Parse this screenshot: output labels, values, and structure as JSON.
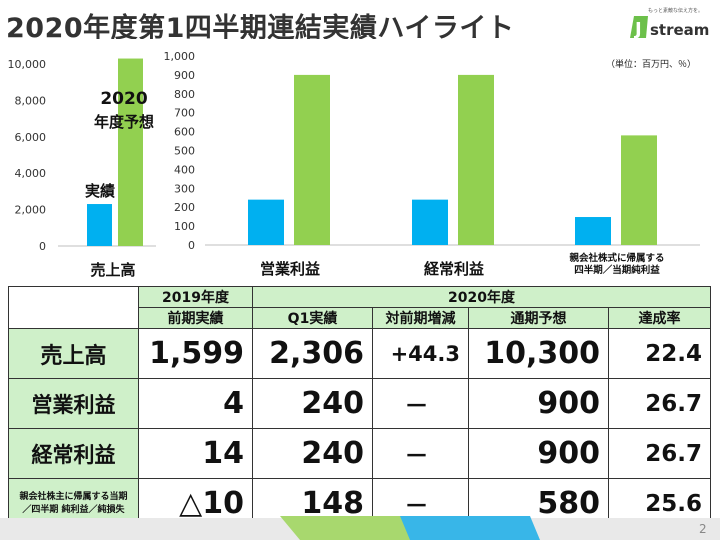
{
  "slide": {
    "title": "2020年度第1四半期連結実績ハイライト",
    "unit": "（単位：百万円、％）",
    "page_number": "2"
  },
  "logo": {
    "tagline": "もっと素敵な伝え方を。",
    "text": "stream",
    "mark": "J"
  },
  "colors": {
    "actual": "#00b0f0",
    "forecast": "#92d050",
    "header_bg": "#cff0c9"
  },
  "chart_data": [
    {
      "type": "bar",
      "categories": [
        "売上高"
      ],
      "series": [
        {
          "name": "実績",
          "values": [
            2306
          ]
        },
        {
          "name": "2020 年度予想",
          "values": [
            10300
          ]
        }
      ],
      "yticks": [
        "10,000",
        "8,000",
        "6,000",
        "4,000",
        "2,000",
        "0"
      ],
      "ylim": [
        0,
        10000
      ],
      "annotations": {
        "actual": "実績",
        "forecast_line1": "2020",
        "forecast_line2": "年度予想"
      }
    },
    {
      "type": "bar",
      "categories": [
        "営業利益",
        "経常利益",
        "親会社株式に帰属する 四半期／当期純利益"
      ],
      "category_lines": [
        [
          "営業利益"
        ],
        [
          "経常利益"
        ],
        [
          "親会社株式に帰属する",
          "四半期／当期純利益"
        ]
      ],
      "series": [
        {
          "name": "実績",
          "values": [
            240,
            240,
            148
          ]
        },
        {
          "name": "予想",
          "values": [
            900,
            900,
            580
          ]
        }
      ],
      "yticks": [
        "1,000",
        "900",
        "800",
        "700",
        "600",
        "500",
        "400",
        "300",
        "200",
        "100",
        "0"
      ],
      "ylim": [
        0,
        1000
      ]
    }
  ],
  "table": {
    "header_year_prev": "2019年度",
    "header_year_curr": "2020年度",
    "columns": [
      "前期実績",
      "Q1実績",
      "対前期増減",
      "通期予想",
      "達成率"
    ],
    "rows": [
      {
        "label": "売上高",
        "prev": "1,599",
        "q1": "2,306",
        "change": "+44.3",
        "forecast": "10,300",
        "rate": "22.4"
      },
      {
        "label": "営業利益",
        "prev": "4",
        "q1": "240",
        "change": "－",
        "forecast": "900",
        "rate": "26.7"
      },
      {
        "label": "経常利益",
        "prev": "14",
        "q1": "240",
        "change": "－",
        "forecast": "900",
        "rate": "26.7"
      },
      {
        "label_line1": "親会社株主に帰属する当期",
        "label_line2": "／四半期 純利益／純損失",
        "prev": "△10",
        "q1": "148",
        "change": "－",
        "forecast": "580",
        "rate": "25.6"
      }
    ]
  }
}
